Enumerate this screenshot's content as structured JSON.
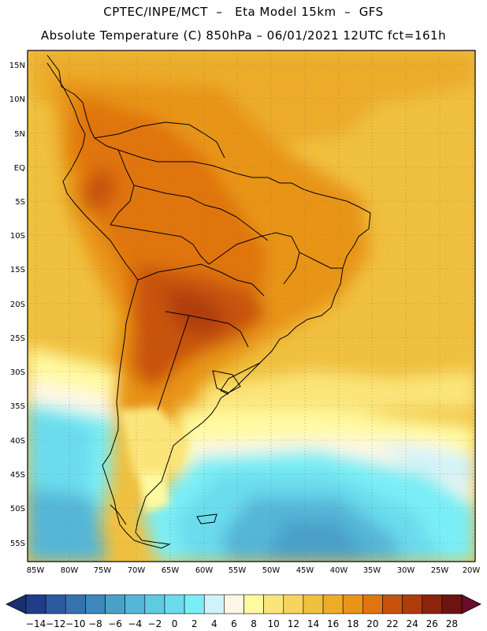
{
  "header": {
    "line1": "CPTEC/INPE/MCT  –   Eta Model 15km  –  GFS",
    "line2": "Absolute Temperature (C) 850hPa – 06/01/2021 12UTC fct=161h"
  },
  "axes": {
    "lat_labels": [
      "15N",
      "10N",
      "5N",
      "EQ",
      "5S",
      "10S",
      "15S",
      "20S",
      "25S",
      "30S",
      "35S",
      "40S",
      "45S",
      "50S",
      "55S"
    ],
    "lon_labels": [
      "85W",
      "80W",
      "75W",
      "70W",
      "65W",
      "60W",
      "55W",
      "50W",
      "45W",
      "40W",
      "35W",
      "30W",
      "25W",
      "20W"
    ]
  },
  "colorbar": {
    "labels": [
      "-14",
      "-12",
      "-10",
      "-8",
      "-6",
      "-4",
      "-2",
      "0",
      "2",
      "4",
      "6",
      "8",
      "10",
      "12",
      "14",
      "16",
      "18",
      "20",
      "22",
      "24",
      "26",
      "28"
    ],
    "colors": [
      "#1f3d8a",
      "#2c5aa0",
      "#3672b0",
      "#3d88bd",
      "#4aa0cb",
      "#55b6d8",
      "#5fcbe3",
      "#6adced",
      "#7aeef6",
      "#cff3fb",
      "#fff7e6",
      "#fffaa0",
      "#fbe57a",
      "#f6d35c",
      "#f0c040",
      "#ecac2a",
      "#e89418",
      "#e07410",
      "#c8520c",
      "#b03c0c",
      "#8c240c",
      "#6e1410"
    ],
    "end_left_color": "#1a2f70",
    "end_right_color": "#6a0c2c"
  }
}
